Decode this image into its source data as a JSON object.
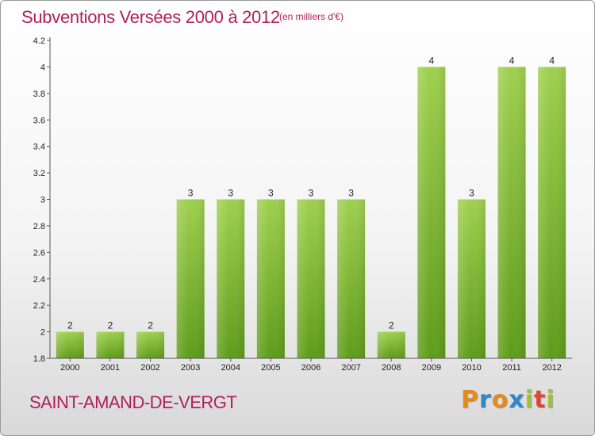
{
  "header": {
    "title": "Subventions Versées 2000 à 2012",
    "subtitle": "(en milliers d'€)"
  },
  "footer": {
    "commune": "SAINT-AMAND-DE-VERGT",
    "logo_letters": [
      "P",
      "r",
      "o",
      "x",
      "i",
      "t",
      "i"
    ],
    "logo_colors": [
      "#e38b1f",
      "#2f86c8",
      "#e38b1f",
      "#2f86c8",
      "#9ac23c",
      "#e0453a",
      "#9ac23c"
    ]
  },
  "chart_data": {
    "type": "bar",
    "title": "Subventions Versées 2000 à 2012",
    "categories": [
      "2000",
      "2001",
      "2002",
      "2003",
      "2004",
      "2005",
      "2006",
      "2007",
      "2008",
      "2009",
      "2010",
      "2011",
      "2012"
    ],
    "values": [
      2,
      2,
      2,
      3,
      3,
      3,
      3,
      3,
      2,
      4,
      3,
      4,
      4
    ],
    "value_labels": [
      "2",
      "2",
      "2",
      "3",
      "3",
      "3",
      "3",
      "3",
      "2",
      "4",
      "3",
      "4",
      "4"
    ],
    "ylim": [
      1.8,
      4.2
    ],
    "yticks": [
      1.8,
      2,
      2.2,
      2.4,
      2.6,
      2.8,
      3,
      3.2,
      3.4,
      3.6,
      3.8,
      4,
      4.2
    ],
    "ytick_labels": [
      "1.8",
      "2",
      "2.2",
      "2.4",
      "2.6",
      "2.8",
      "3",
      "3.2",
      "3.4",
      "3.6",
      "3.8",
      "4",
      "4.2"
    ],
    "grid": false,
    "legend": "none",
    "colors": {
      "bar_top": "#9fd04f",
      "bar_bottom": "#5f9c1a",
      "axis": "#555555"
    }
  }
}
